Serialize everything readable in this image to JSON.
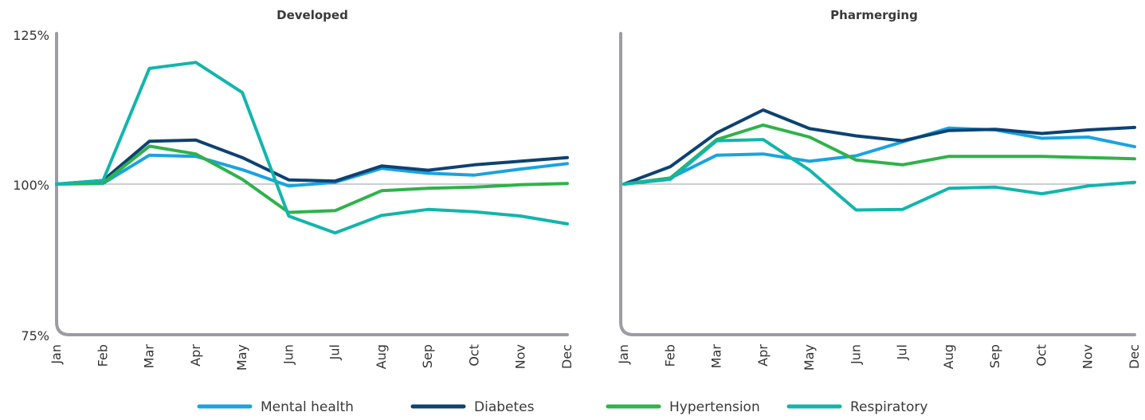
{
  "chart_data": [
    {
      "type": "line",
      "title": "Developed",
      "x": [
        "Jan",
        "Feb",
        "Mar",
        "Apr",
        "May",
        "Jun",
        "Jul",
        "Aug",
        "Sep",
        "Oct",
        "Nov",
        "Dec"
      ],
      "yticks": [
        "125%",
        "100%",
        "75%"
      ],
      "ylim": [
        75,
        125
      ],
      "series": [
        {
          "name": "Mental health",
          "color": "#1aa3e0",
          "values": [
            100,
            100.1,
            104.8,
            104.6,
            102.4,
            99.7,
            100.3,
            102.6,
            101.8,
            101.5,
            102.5,
            103.4
          ]
        },
        {
          "name": "Diabetes",
          "color": "#0d4272",
          "values": [
            100,
            100.6,
            107.1,
            107.3,
            104.4,
            100.7,
            100.5,
            103.0,
            102.3,
            103.2,
            103.8,
            104.4
          ]
        },
        {
          "name": "Hypertension",
          "color": "#2fb24a",
          "values": [
            100,
            100.2,
            106.3,
            105.0,
            100.8,
            95.3,
            95.6,
            98.9,
            99.3,
            99.5,
            99.9,
            100.1
          ]
        },
        {
          "name": "Respiratory",
          "color": "#12b5ab",
          "values": [
            100,
            100.6,
            119.2,
            120.2,
            115.2,
            94.7,
            91.9,
            94.8,
            95.8,
            95.4,
            94.7,
            93.4
          ]
        }
      ]
    },
    {
      "type": "line",
      "title": "Pharmerging",
      "x": [
        "Jan",
        "Feb",
        "Mar",
        "Apr",
        "May",
        "Jun",
        "Jul",
        "Aug",
        "Sep",
        "Oct",
        "Nov",
        "Dec"
      ],
      "ylim": [
        75,
        125
      ],
      "series": [
        {
          "name": "Mental health",
          "color": "#1aa3e0",
          "values": [
            100,
            101.0,
            104.8,
            105.0,
            103.8,
            104.7,
            107.0,
            109.3,
            109.0,
            107.6,
            107.8,
            106.2
          ]
        },
        {
          "name": "Diabetes",
          "color": "#0d4272",
          "values": [
            100,
            102.9,
            108.5,
            112.3,
            109.2,
            108.0,
            107.2,
            108.9,
            109.1,
            108.4,
            109.0,
            109.4
          ]
        },
        {
          "name": "Hypertension",
          "color": "#2fb24a",
          "values": [
            100,
            101.0,
            107.4,
            109.8,
            107.8,
            104.0,
            103.2,
            104.6,
            104.6,
            104.6,
            104.4,
            104.2
          ]
        },
        {
          "name": "Respiratory",
          "color": "#12b5ab",
          "values": [
            100,
            100.8,
            107.2,
            107.4,
            102.3,
            95.7,
            95.8,
            99.3,
            99.5,
            98.4,
            99.7,
            100.3
          ]
        }
      ]
    }
  ],
  "legend": [
    {
      "name": "Mental health",
      "color": "#1aa3e0"
    },
    {
      "name": "Diabetes",
      "color": "#0d4272"
    },
    {
      "name": "Hypertension",
      "color": "#2fb24a"
    },
    {
      "name": "Respiratory",
      "color": "#12b5ab"
    }
  ],
  "colors": {
    "axis": "#9b9ca6",
    "reference_line": "#9b9ca6"
  }
}
